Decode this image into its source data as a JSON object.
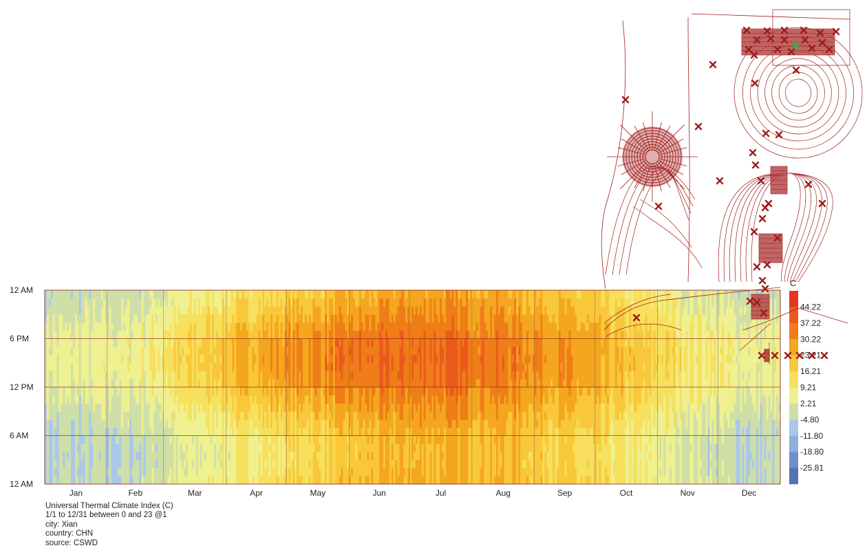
{
  "chart_data": {
    "type": "heatmap",
    "title": "",
    "x_axis": {
      "categories": [
        "Jan",
        "Feb",
        "Mar",
        "Apr",
        "May",
        "Jun",
        "Jul",
        "Aug",
        "Sep",
        "Oct",
        "Nov",
        "Dec"
      ],
      "day_count": [
        31,
        28,
        31,
        30,
        31,
        30,
        31,
        31,
        30,
        31,
        30,
        31
      ]
    },
    "y_axis": {
      "tick_labels": [
        "12 AM",
        "6 PM",
        "12 PM",
        "6 AM",
        "12 AM"
      ],
      "hours": [
        24,
        18,
        12,
        6,
        0
      ]
    },
    "grid": true,
    "legend": {
      "unit": "C",
      "placement": "right",
      "labels": [
        "44.22",
        "37.22",
        "30.22",
        "23.21",
        "16.21",
        "9.21",
        "2.21",
        "-4.80",
        "-11.80",
        "-18.80",
        "-25.81"
      ],
      "colors": [
        "#e3371f",
        "#ea5a1d",
        "#ef7d18",
        "#f4a61f",
        "#f8c83a",
        "#f6e05e",
        "#eff08f",
        "#cfdfa8",
        "#a9c7ea",
        "#8eaedb",
        "#6f8fcb",
        "#5373b4"
      ]
    },
    "values_description": "Hourly UTCI (C) for each day of the year; cold blues in Jan-Feb and Dec, hot oranges/reds in May-Aug afternoons.",
    "monthly_profile": [
      {
        "month": "Jan",
        "min": -6,
        "max": 4
      },
      {
        "month": "Feb",
        "min": -4,
        "max": 6
      },
      {
        "month": "Mar",
        "min": 3,
        "max": 17
      },
      {
        "month": "Apr",
        "min": 9,
        "max": 27
      },
      {
        "month": "May",
        "min": 15,
        "max": 33
      },
      {
        "month": "Jun",
        "min": 21,
        "max": 36
      },
      {
        "month": "Jul",
        "min": 24,
        "max": 38
      },
      {
        "month": "Aug",
        "min": 22,
        "max": 35
      },
      {
        "month": "Sep",
        "min": 16,
        "max": 29
      },
      {
        "month": "Oct",
        "min": 8,
        "max": 20
      },
      {
        "month": "Nov",
        "min": 1,
        "max": 12
      },
      {
        "month": "Dec",
        "min": -5,
        "max": 5
      }
    ]
  },
  "caption": {
    "line1": "Universal Thermal Climate Index (C)",
    "line2": "1/1 to 12/31 between 0 and 23 @1",
    "line3": "city: Xian",
    "line4": "country: CHN",
    "line5": "source: CSWD"
  },
  "site_plan": {
    "description": "Overlaid CAD site plan with contour lines, a circular structure and red cross markers",
    "accent_color": "#a01c1c",
    "highlight_color": "#2db34a"
  }
}
